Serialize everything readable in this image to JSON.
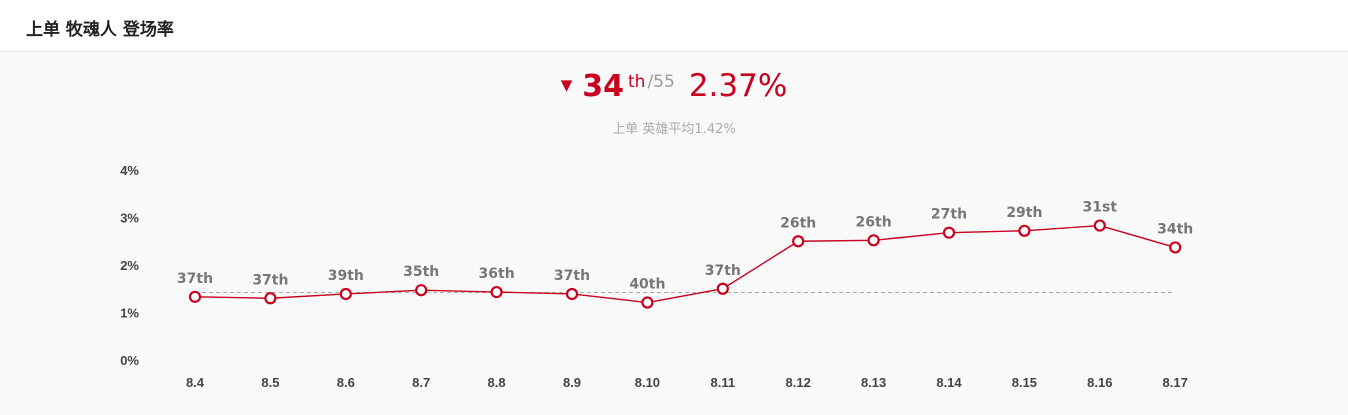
{
  "header": {
    "title": "上单 牧魂人 登场率"
  },
  "summary": {
    "trend_icon": "triangle-down-icon",
    "trend_glyph": "▼",
    "rank": "34",
    "rank_suffix": "th",
    "rank_total": "/55",
    "rate": "2.37%",
    "average_text": "上单 英雄平均1.42%"
  },
  "colors": {
    "accent": "#c9001e",
    "average_line": "#aaaaaa",
    "tick_text": "#444444",
    "label_text": "#777777"
  },
  "chart_data": {
    "type": "line",
    "categories": [
      "8.4",
      "8.5",
      "8.6",
      "8.7",
      "8.8",
      "8.9",
      "8.10",
      "8.11",
      "8.12",
      "8.13",
      "8.14",
      "8.15",
      "8.16",
      "8.17"
    ],
    "series": [
      {
        "values": [
          1.33,
          1.3,
          1.39,
          1.47,
          1.43,
          1.39,
          1.21,
          1.5,
          2.5,
          2.52,
          2.68,
          2.72,
          2.83,
          2.37
        ],
        "labels": [
          "37th",
          "37th",
          "39th",
          "35th",
          "36th",
          "37th",
          "40th",
          "37th",
          "26th",
          "26th",
          "27th",
          "29th",
          "31st",
          "34th"
        ]
      }
    ],
    "reference_line": 1.42,
    "ylim": [
      0,
      4
    ],
    "yticks": [
      "0%",
      "1%",
      "2%",
      "3%",
      "4%"
    ],
    "grid": false,
    "legend": "none"
  }
}
